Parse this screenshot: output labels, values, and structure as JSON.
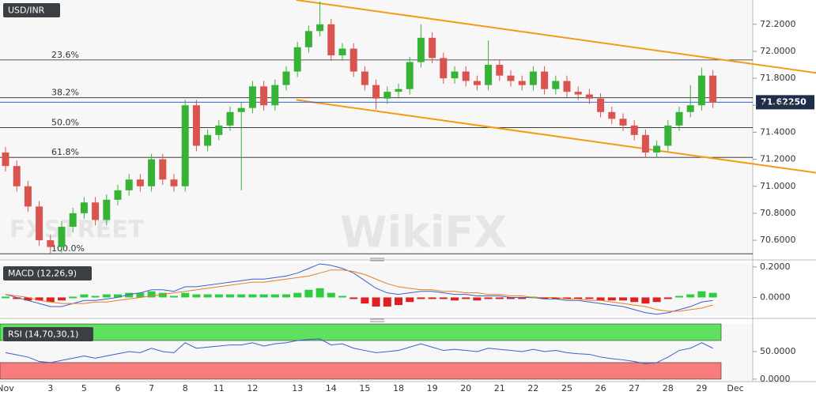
{
  "chart_data": [
    {
      "type": "candlestick",
      "title": "USD/INR",
      "categories": [
        "Nov",
        null,
        null,
        null,
        "3",
        null,
        null,
        "5",
        null,
        null,
        "6",
        null,
        null,
        "7",
        null,
        null,
        "8",
        null,
        null,
        "11",
        null,
        null,
        "12",
        null,
        null,
        null,
        "13",
        null,
        null,
        "14",
        null,
        null,
        "15",
        null,
        null,
        "18",
        null,
        null,
        "19",
        null,
        null,
        "20",
        null,
        null,
        "21",
        null,
        null,
        "22",
        null,
        null,
        "25",
        null,
        null,
        "26",
        null,
        null,
        "27",
        null,
        null,
        "28",
        null,
        null,
        "29",
        null,
        null,
        "Dec"
      ],
      "open": [
        71.25,
        71.15,
        71.0,
        70.85,
        70.6,
        70.55,
        70.7,
        70.8,
        70.88,
        70.75,
        70.9,
        70.97,
        71.05,
        71.0,
        71.2,
        71.05,
        71.0,
        71.6,
        71.3,
        71.38,
        71.45,
        71.55,
        71.58,
        71.74,
        71.6,
        71.75,
        71.85,
        72.03,
        72.15,
        72.2,
        71.97,
        72.02,
        71.85,
        71.75,
        71.65,
        71.7,
        71.72,
        71.92,
        72.1,
        71.95,
        71.8,
        71.85,
        71.78,
        71.75,
        71.9,
        71.82,
        71.78,
        71.75,
        71.85,
        71.72,
        71.78,
        71.7,
        71.68,
        71.65,
        71.55,
        71.5,
        71.45,
        71.38,
        71.25,
        71.3,
        71.45,
        71.55,
        71.6,
        71.82,
        null,
        null
      ],
      "high": [
        71.29,
        71.19,
        71.04,
        70.89,
        70.64,
        70.74,
        70.84,
        70.92,
        70.92,
        70.94,
        71.01,
        71.09,
        71.09,
        71.24,
        71.24,
        71.09,
        71.64,
        71.64,
        71.42,
        71.49,
        71.59,
        71.62,
        71.78,
        71.78,
        71.79,
        71.89,
        72.07,
        72.19,
        72.37,
        72.24,
        72.06,
        72.06,
        71.89,
        71.79,
        71.74,
        71.76,
        71.96,
        72.2,
        72.14,
        71.99,
        71.89,
        71.89,
        71.82,
        72.08,
        71.94,
        71.86,
        71.82,
        71.89,
        71.89,
        71.82,
        71.82,
        71.74,
        71.72,
        71.69,
        71.59,
        71.54,
        71.49,
        71.42,
        71.34,
        71.49,
        71.59,
        71.75,
        71.88,
        71.86,
        null,
        null
      ],
      "low": [
        71.11,
        70.96,
        70.81,
        70.56,
        70.5,
        70.51,
        70.66,
        70.76,
        70.71,
        70.71,
        70.86,
        70.93,
        70.96,
        70.96,
        71.01,
        70.96,
        70.96,
        71.26,
        71.26,
        71.34,
        71.41,
        70.97,
        71.54,
        71.56,
        71.56,
        71.71,
        71.81,
        71.99,
        72.11,
        71.93,
        71.93,
        71.81,
        71.71,
        71.57,
        71.61,
        71.66,
        71.68,
        71.88,
        71.91,
        71.76,
        71.76,
        71.74,
        71.71,
        71.71,
        71.78,
        71.74,
        71.71,
        71.71,
        71.68,
        71.68,
        71.66,
        71.64,
        71.61,
        71.51,
        71.46,
        71.41,
        71.34,
        71.21,
        71.21,
        71.26,
        71.41,
        71.51,
        71.56,
        71.58,
        null,
        null
      ],
      "close": [
        71.15,
        71.0,
        70.85,
        70.6,
        70.55,
        70.7,
        70.8,
        70.88,
        70.75,
        70.9,
        70.97,
        71.05,
        71.0,
        71.2,
        71.05,
        71.0,
        71.6,
        71.3,
        71.38,
        71.45,
        71.55,
        71.58,
        71.74,
        71.6,
        71.75,
        71.85,
        72.03,
        72.15,
        72.2,
        71.97,
        72.02,
        71.85,
        71.75,
        71.65,
        71.7,
        71.72,
        71.92,
        72.1,
        71.95,
        71.8,
        71.85,
        71.78,
        71.75,
        71.9,
        71.82,
        71.78,
        71.75,
        71.85,
        71.72,
        71.78,
        71.7,
        71.68,
        71.65,
        71.55,
        71.5,
        71.45,
        71.38,
        71.25,
        71.3,
        71.45,
        71.55,
        71.6,
        71.82,
        71.62,
        null,
        null
      ],
      "up_color": "#36b336",
      "down_color": "#d9534f",
      "ylim": [
        70.46,
        72.38
      ],
      "yticks": [
        {
          "value": 70.6,
          "label": "70.6000"
        },
        {
          "value": 70.8,
          "label": "70.8000"
        },
        {
          "value": 71.0,
          "label": "71.0000"
        },
        {
          "value": 71.2,
          "label": "71.2000"
        },
        {
          "value": 71.4,
          "label": "71.4000"
        },
        {
          "value": 71.6,
          "label": "71.6000"
        },
        {
          "value": 71.8,
          "label": "71.8000"
        },
        {
          "value": 72.0,
          "label": "72.0000"
        },
        {
          "value": 72.2,
          "label": "72.2000"
        }
      ],
      "fib_levels": [
        {
          "value": 71.936,
          "label": "23.6%"
        },
        {
          "value": 71.656,
          "label": "38.2%"
        },
        {
          "value": 71.435,
          "label": "50.0%"
        },
        {
          "value": 71.214,
          "label": "61.8%"
        },
        {
          "value": 70.5,
          "label": "100.0%"
        }
      ],
      "trend_lines": [
        {
          "x": [
            25.9,
            72.2
          ],
          "y": [
            72.38,
            71.84
          ],
          "color": "#f39c12"
        },
        {
          "x": [
            25.9,
            72.2
          ],
          "y": [
            71.64,
            71.1
          ],
          "color": "#f39c12"
        }
      ],
      "last_price": {
        "value": 71.6225,
        "label": "71.62250"
      },
      "watermarks": [
        "FXSTREET",
        "WikiFX"
      ]
    },
    {
      "type": "macd",
      "title": "MACD (12,26,9)",
      "series": [
        {
          "color": "#3a5fcd",
          "values": [
            0.02,
            0.0,
            -0.02,
            -0.04,
            -0.06,
            -0.06,
            -0.04,
            -0.02,
            -0.02,
            -0.01,
            0.0,
            0.02,
            0.03,
            0.05,
            0.05,
            0.04,
            0.07,
            0.07,
            0.08,
            0.09,
            0.1,
            0.11,
            0.12,
            0.12,
            0.13,
            0.14,
            0.16,
            0.19,
            0.22,
            0.21,
            0.19,
            0.16,
            0.11,
            0.06,
            0.03,
            0.02,
            0.03,
            0.04,
            0.04,
            0.03,
            0.02,
            0.02,
            0.01,
            0.01,
            0.01,
            0.0,
            0.0,
            0.0,
            -0.01,
            -0.01,
            -0.02,
            -0.02,
            -0.03,
            -0.04,
            -0.05,
            -0.06,
            -0.08,
            -0.1,
            -0.11,
            -0.1,
            -0.08,
            -0.06,
            -0.03,
            -0.02
          ]
        },
        {
          "color": "#e67e22",
          "values": [
            0.02,
            0.01,
            0.0,
            -0.02,
            -0.03,
            -0.04,
            -0.04,
            -0.04,
            -0.03,
            -0.03,
            -0.02,
            -0.01,
            0.0,
            0.01,
            0.02,
            0.03,
            0.04,
            0.05,
            0.06,
            0.07,
            0.08,
            0.09,
            0.1,
            0.1,
            0.11,
            0.12,
            0.13,
            0.14,
            0.16,
            0.18,
            0.18,
            0.17,
            0.15,
            0.12,
            0.09,
            0.07,
            0.06,
            0.05,
            0.05,
            0.04,
            0.04,
            0.03,
            0.03,
            0.02,
            0.02,
            0.01,
            0.01,
            0.0,
            0.0,
            0.0,
            -0.01,
            -0.01,
            -0.02,
            -0.02,
            -0.03,
            -0.04,
            -0.05,
            -0.06,
            -0.08,
            -0.09,
            -0.09,
            -0.08,
            -0.07,
            -0.05
          ]
        }
      ],
      "histogram": {
        "up_color": "#2ecc40",
        "down_color": "#e02020",
        "values": [
          0,
          -0.01,
          -0.02,
          -0.02,
          -0.03,
          -0.02,
          0,
          0.02,
          0.01,
          0.02,
          0.02,
          0.03,
          0.03,
          0.04,
          0.03,
          0.01,
          0.03,
          0.02,
          0.02,
          0.02,
          0.02,
          0.02,
          0.02,
          0.02,
          0.02,
          0.02,
          0.03,
          0.05,
          0.06,
          0.03,
          0.01,
          -0.01,
          -0.04,
          -0.06,
          -0.06,
          -0.05,
          -0.03,
          -0.01,
          -0.01,
          -0.01,
          -0.02,
          -0.01,
          -0.02,
          -0.01,
          -0.01,
          -0.01,
          -0.01,
          0,
          -0.01,
          -0.01,
          -0.01,
          -0.01,
          -0.01,
          -0.02,
          -0.02,
          -0.02,
          -0.03,
          -0.04,
          -0.03,
          -0.01,
          0.01,
          0.02,
          0.04,
          0.03
        ]
      },
      "ylim": [
        -0.122,
        0.225
      ],
      "yticks": [
        {
          "value": 0.0,
          "label": "0.0000"
        },
        {
          "value": 0.2,
          "label": "0.2000"
        }
      ]
    },
    {
      "type": "rsi",
      "title": "RSI (14,70,30,1)",
      "series": [
        {
          "color": "#3a5fcd",
          "values": [
            48,
            44,
            40,
            32,
            30,
            34,
            38,
            42,
            38,
            42,
            46,
            50,
            48,
            56,
            50,
            48,
            66,
            56,
            58,
            60,
            62,
            62,
            66,
            60,
            64,
            66,
            70,
            72,
            73,
            62,
            64,
            56,
            52,
            48,
            50,
            52,
            58,
            64,
            58,
            52,
            54,
            52,
            50,
            56,
            54,
            52,
            50,
            54,
            50,
            52,
            48,
            46,
            45,
            40,
            37,
            35,
            32,
            28,
            30,
            40,
            52,
            56,
            66,
            56
          ]
        }
      ],
      "zones": [
        {
          "from": 70,
          "to": 100,
          "color": "#5fe05f"
        },
        {
          "from": 0,
          "to": 30,
          "color": "#f77d7d"
        }
      ],
      "ylim": [
        -3,
        100
      ],
      "yticks": [
        {
          "value": 0,
          "label": "0.0000"
        },
        {
          "value": 50,
          "label": "50.0000"
        }
      ]
    }
  ]
}
